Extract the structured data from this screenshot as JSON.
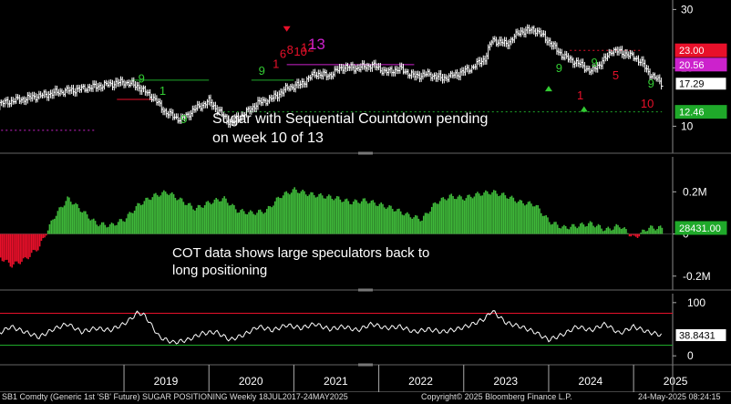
{
  "chart_data": [
    {
      "type": "line",
      "title": "",
      "y_ticks": [
        10,
        20,
        30
      ],
      "ylim": [
        6,
        31
      ],
      "price_labels": [
        {
          "value": 23.0,
          "text": "23.00",
          "color": "#e8102a"
        },
        {
          "value": 20.56,
          "text": "20.56",
          "color": "#cc22cc"
        },
        {
          "value": 17.29,
          "text": "17.29",
          "color": "#000000"
        },
        {
          "value": 12.46,
          "text": "12.46",
          "color": "#1fa92a"
        }
      ],
      "levels": [
        {
          "value": 23.0,
          "style": "dotted",
          "color": "#e8102a",
          "x_from": "2024-04",
          "x_to": "2025-02"
        },
        {
          "value": 20.56,
          "style": "solid",
          "color": "#cc22cc",
          "x_from": "2020-12",
          "x_to": "2022-06"
        },
        {
          "value": 12.46,
          "style": "dotted",
          "color": "#1fa92a",
          "x_from": "2020-03",
          "x_to": "2025-05"
        },
        {
          "value": 17.9,
          "style": "solid",
          "color": "#1fa92a",
          "x_from": "2019-02",
          "x_to": "2020-01"
        },
        {
          "value": 14.6,
          "style": "solid",
          "color": "#e8102a",
          "x_from": "2018-12",
          "x_to": "2019-05"
        },
        {
          "value": 17.9,
          "style": "solid",
          "color": "#1fa92a",
          "x_from": "2020-07",
          "x_to": "2021-01"
        },
        {
          "value": 9.3,
          "style": "dotted",
          "color": "#cc22cc",
          "x_from": "2017-07",
          "x_to": "2018-09"
        }
      ],
      "annotation": [
        "Sugar with Sequential Countdown pending",
        "on week 10 of 13"
      ],
      "sequential_labels": [
        {
          "x": "2019-03",
          "y": 17.5,
          "text": "9",
          "color": "#33cc33"
        },
        {
          "x": "2019-06",
          "y": 15.4,
          "text": "1",
          "color": "#33cc33"
        },
        {
          "x": "2019-09",
          "y": 10.5,
          "text": "9",
          "color": "#33cc33"
        },
        {
          "x": "2020-08",
          "y": 18.8,
          "text": "9",
          "color": "#33cc33"
        },
        {
          "x": "2020-10",
          "y": 20.0,
          "text": "1",
          "color": "#e8102a"
        },
        {
          "x": "2020-11",
          "y": 21.7,
          "text": "6",
          "color": "#e8102a"
        },
        {
          "x": "2020-12",
          "y": 22.4,
          "text": "8",
          "color": "#e8102a"
        },
        {
          "x": "2021-01",
          "y": 22.1,
          "text": "10",
          "color": "#e8102a"
        },
        {
          "x": "2021-02",
          "y": 22.8,
          "text": "12",
          "color": "#e8102a"
        },
        {
          "x": "2021-03",
          "y": 23.2,
          "text": "13",
          "color": "#cc22cc"
        },
        {
          "x": "2024-02",
          "y": 19.3,
          "text": "9",
          "color": "#33cc33"
        },
        {
          "x": "2024-05",
          "y": 14.6,
          "text": "1",
          "color": "#e8102a"
        },
        {
          "x": "2024-07",
          "y": 20.2,
          "text": "9",
          "color": "#33cc33"
        },
        {
          "x": "2024-10",
          "y": 18.0,
          "text": "5",
          "color": "#e8102a"
        },
        {
          "x": "2025-02",
          "y": 13.2,
          "text": "10",
          "color": "#e8102a"
        },
        {
          "x": "2025-03",
          "y": 16.6,
          "text": "9",
          "color": "#33cc33"
        }
      ],
      "series": [
        {
          "x": [
            "2017-07",
            "2017-10",
            "2018-01",
            "2018-04",
            "2018-07",
            "2018-10",
            "2019-01",
            "2019-03",
            "2019-05",
            "2019-07",
            "2019-09",
            "2019-11",
            "2020-01",
            "2020-03",
            "2020-04",
            "2020-06",
            "2020-08",
            "2020-10",
            "2020-12",
            "2021-02",
            "2021-04",
            "2021-06",
            "2021-08",
            "2021-10",
            "2021-12",
            "2022-02",
            "2022-04",
            "2022-06",
            "2022-08",
            "2022-10",
            "2022-12",
            "2023-02",
            "2023-04",
            "2023-05",
            "2023-07",
            "2023-09",
            "2023-11",
            "2024-01",
            "2024-03",
            "2024-05",
            "2024-07",
            "2024-09",
            "2024-10",
            "2024-12",
            "2025-02",
            "2025-03",
            "2025-05"
          ],
          "values": [
            13.8,
            14.5,
            15.2,
            15.9,
            16.4,
            17.0,
            17.6,
            16.8,
            15.0,
            12.3,
            11.1,
            12.9,
            14.3,
            11.8,
            10.6,
            12.1,
            14.0,
            14.8,
            16.5,
            17.2,
            19.0,
            18.7,
            20.2,
            19.9,
            20.5,
            19.3,
            19.8,
            18.6,
            18.9,
            18.2,
            18.9,
            19.9,
            21.6,
            24.8,
            24.1,
            26.2,
            26.6,
            24.6,
            22.0,
            20.9,
            19.4,
            21.5,
            23.1,
            22.4,
            21.2,
            19.3,
            17.3
          ]
        }
      ]
    },
    {
      "type": "bar",
      "y_ticks": [
        {
          "value": 200000,
          "text": "0.2M"
        },
        {
          "value": 0,
          "text": "0"
        },
        {
          "value": -200000,
          "text": "-0.2M"
        }
      ],
      "ylim": [
        -240000,
        340000
      ],
      "value_label": "28431.00",
      "annotation": [
        "COT data shows large speculators back to",
        "long positioning"
      ],
      "series": [
        {
          "x": [
            "2017-07",
            "2017-09",
            "2017-11",
            "2018-01",
            "2018-03",
            "2018-05",
            "2018-07",
            "2018-09",
            "2018-11",
            "2019-01",
            "2019-03",
            "2019-05",
            "2019-07",
            "2019-09",
            "2019-11",
            "2020-01",
            "2020-03",
            "2020-05",
            "2020-07",
            "2020-09",
            "2020-11",
            "2021-01",
            "2021-03",
            "2021-05",
            "2021-07",
            "2021-09",
            "2021-11",
            "2022-01",
            "2022-03",
            "2022-05",
            "2022-07",
            "2022-09",
            "2022-11",
            "2023-01",
            "2023-03",
            "2023-05",
            "2023-07",
            "2023-09",
            "2023-11",
            "2024-01",
            "2024-03",
            "2024-05",
            "2024-07",
            "2024-09",
            "2024-11",
            "2025-01",
            "2025-03",
            "2025-05"
          ],
          "values": [
            -100000,
            -150000,
            -120000,
            -60000,
            80000,
            170000,
            110000,
            50000,
            40000,
            70000,
            140000,
            180000,
            200000,
            160000,
            120000,
            150000,
            170000,
            110000,
            100000,
            110000,
            180000,
            210000,
            190000,
            180000,
            170000,
            150000,
            160000,
            140000,
            120000,
            90000,
            70000,
            150000,
            180000,
            170000,
            190000,
            200000,
            180000,
            150000,
            140000,
            60000,
            30000,
            40000,
            50000,
            20000,
            40000,
            -20000,
            30000,
            28431
          ]
        }
      ]
    },
    {
      "type": "line",
      "y_ticks": [
        0,
        100
      ],
      "ylim": [
        -10,
        110
      ],
      "value_label": "38.8431",
      "levels": [
        {
          "value": 80,
          "color": "#e8102a"
        },
        {
          "value": 20,
          "color": "#1fa92a"
        }
      ],
      "series": [
        {
          "x": [
            "2017-07",
            "2017-09",
            "2017-11",
            "2018-01",
            "2018-03",
            "2018-05",
            "2018-07",
            "2018-09",
            "2018-11",
            "2019-01",
            "2019-02",
            "2019-03",
            "2019-04",
            "2019-06",
            "2019-08",
            "2019-10",
            "2019-12",
            "2020-02",
            "2020-04",
            "2020-06",
            "2020-08",
            "2020-10",
            "2020-12",
            "2021-02",
            "2021-04",
            "2021-06",
            "2021-08",
            "2021-10",
            "2021-12",
            "2022-02",
            "2022-04",
            "2022-06",
            "2022-08",
            "2022-10",
            "2022-12",
            "2023-02",
            "2023-04",
            "2023-05",
            "2023-07",
            "2023-09",
            "2023-11",
            "2024-01",
            "2024-03",
            "2024-05",
            "2024-07",
            "2024-09",
            "2024-11",
            "2025-01",
            "2025-03",
            "2025-05"
          ],
          "values": [
            40,
            55,
            45,
            35,
            50,
            60,
            45,
            52,
            48,
            60,
            70,
            82,
            75,
            35,
            25,
            30,
            42,
            45,
            30,
            40,
            55,
            48,
            58,
            52,
            60,
            50,
            55,
            48,
            60,
            52,
            55,
            45,
            50,
            45,
            50,
            58,
            70,
            85,
            62,
            55,
            45,
            30,
            40,
            55,
            48,
            60,
            42,
            55,
            45,
            38.8431
          ]
        }
      ]
    }
  ],
  "x_axis": {
    "years": [
      "2019",
      "2020",
      "2021",
      "2022",
      "2023",
      "2024",
      "2025"
    ]
  },
  "footer": {
    "left": "SB1 Comdty (Generic 1st 'SB' Future) SUGAR POSITIONING  Weekly 18JUL2017-24MAY2025",
    "center": "Copyright© 2025 Bloomberg Finance L.P.",
    "right": "24-May-2025 08:24:15"
  }
}
